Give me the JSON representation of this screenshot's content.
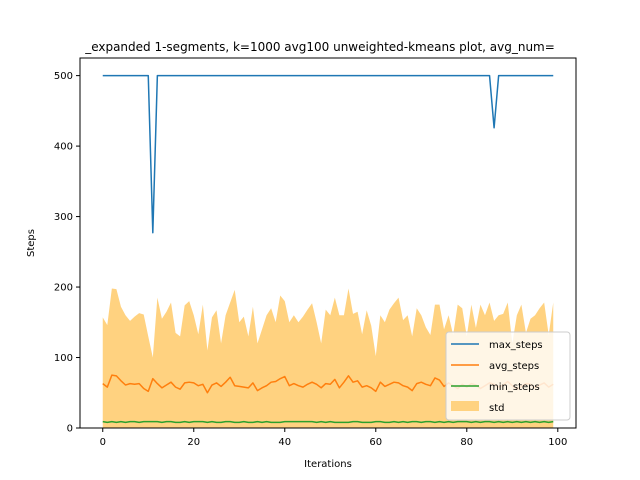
{
  "chart_data": {
    "type": "line",
    "title": "_expanded 1-segments, k=1000 avg100 unweighted-kmeans plot, avg_num=",
    "xlabel": "Iterations",
    "ylabel": "Steps",
    "xlim": [
      -5,
      104
    ],
    "ylim": [
      0,
      525
    ],
    "xticks": [
      0,
      20,
      40,
      60,
      80,
      100
    ],
    "yticks": [
      0,
      100,
      200,
      300,
      400,
      500
    ],
    "legend_position": "lower-right",
    "x": [
      0,
      1,
      2,
      3,
      4,
      5,
      6,
      7,
      8,
      9,
      10,
      11,
      12,
      13,
      14,
      15,
      16,
      17,
      18,
      19,
      20,
      21,
      22,
      23,
      24,
      25,
      26,
      27,
      28,
      29,
      30,
      31,
      32,
      33,
      34,
      35,
      36,
      37,
      38,
      39,
      40,
      41,
      42,
      43,
      44,
      45,
      46,
      47,
      48,
      49,
      50,
      51,
      52,
      53,
      54,
      55,
      56,
      57,
      58,
      59,
      60,
      61,
      62,
      63,
      64,
      65,
      66,
      67,
      68,
      69,
      70,
      71,
      72,
      73,
      74,
      75,
      76,
      77,
      78,
      79,
      80,
      81,
      82,
      83,
      84,
      85,
      86,
      87,
      88,
      89,
      90,
      91,
      92,
      93,
      94,
      95,
      96,
      97,
      98,
      99
    ],
    "series": [
      {
        "name": "max_steps",
        "color": "#1f77b4",
        "values": [
          500,
          500,
          500,
          500,
          500,
          500,
          500,
          500,
          500,
          500,
          500,
          277,
          500,
          500,
          500,
          500,
          500,
          500,
          500,
          500,
          500,
          500,
          500,
          500,
          500,
          500,
          500,
          500,
          500,
          500,
          500,
          500,
          500,
          500,
          500,
          500,
          500,
          500,
          500,
          500,
          500,
          500,
          500,
          500,
          500,
          500,
          500,
          500,
          500,
          500,
          500,
          500,
          500,
          500,
          500,
          500,
          500,
          500,
          500,
          500,
          500,
          500,
          500,
          500,
          500,
          500,
          500,
          500,
          500,
          500,
          500,
          500,
          500,
          500,
          500,
          500,
          500,
          500,
          500,
          500,
          500,
          500,
          500,
          500,
          500,
          500,
          426,
          500,
          500,
          500,
          500,
          500,
          500,
          500,
          500,
          500,
          500,
          500,
          500,
          500
        ]
      },
      {
        "name": "avg_steps",
        "color": "#ff7f0e",
        "values": [
          63,
          58,
          75,
          74,
          67,
          61,
          63,
          62,
          63,
          56,
          52,
          70,
          63,
          57,
          61,
          65,
          58,
          55,
          64,
          65,
          64,
          60,
          62,
          50,
          61,
          64,
          59,
          65,
          72,
          60,
          59,
          58,
          57,
          64,
          53,
          57,
          60,
          65,
          66,
          70,
          73,
          60,
          63,
          60,
          58,
          62,
          65,
          62,
          57,
          63,
          62,
          69,
          57,
          65,
          74,
          65,
          67,
          58,
          60,
          57,
          52,
          65,
          59,
          62,
          65,
          64,
          60,
          58,
          53,
          63,
          65,
          62,
          60,
          71,
          68,
          59,
          64,
          60,
          56,
          62,
          58,
          63,
          61,
          56,
          60,
          64,
          62,
          58,
          61,
          66,
          60,
          55,
          59,
          63,
          62,
          57,
          61,
          64,
          58,
          62
        ]
      },
      {
        "name": "min_steps",
        "color": "#2ca02c",
        "values": [
          9,
          8,
          9,
          8,
          9,
          8,
          9,
          9,
          8,
          9,
          9,
          9,
          9,
          8,
          9,
          9,
          8,
          8,
          9,
          8,
          9,
          9,
          9,
          8,
          9,
          8,
          8,
          9,
          9,
          8,
          8,
          9,
          8,
          8,
          9,
          8,
          9,
          8,
          8,
          8,
          9,
          9,
          9,
          9,
          9,
          9,
          9,
          8,
          9,
          8,
          9,
          8,
          8,
          8,
          8,
          9,
          9,
          8,
          8,
          8,
          9,
          9,
          8,
          8,
          9,
          8,
          9,
          8,
          9,
          9,
          8,
          9,
          9,
          8,
          9,
          8,
          9,
          8,
          9,
          9,
          9,
          8,
          9,
          8,
          9,
          9,
          8,
          9,
          8,
          9,
          8,
          9,
          8,
          9,
          8,
          9,
          8,
          9,
          8,
          9
        ]
      }
    ],
    "band": {
      "name": "std",
      "color": "#ffd280",
      "upper": [
        157,
        146,
        198,
        197,
        172,
        160,
        152,
        158,
        163,
        161,
        130,
        100,
        185,
        155,
        165,
        178,
        135,
        130,
        174,
        180,
        160,
        133,
        175,
        110,
        157,
        167,
        120,
        160,
        178,
        196,
        150,
        158,
        130,
        172,
        120,
        140,
        160,
        170,
        150,
        188,
        180,
        150,
        160,
        150,
        158,
        168,
        177,
        150,
        120,
        168,
        160,
        185,
        160,
        160,
        198,
        162,
        165,
        133,
        167,
        145,
        102,
        160,
        150,
        168,
        177,
        185,
        153,
        160,
        130,
        170,
        160,
        143,
        132,
        175,
        175,
        140,
        160,
        132,
        175,
        170,
        130,
        175,
        142,
        175,
        160,
        178,
        152,
        160,
        162,
        178,
        120,
        160,
        175,
        135,
        155,
        160,
        170,
        178,
        132,
        178
      ],
      "lower": [
        0,
        0,
        0,
        0,
        0,
        0,
        0,
        0,
        0,
        0,
        0,
        0,
        0,
        0,
        0,
        0,
        0,
        0,
        0,
        0,
        0,
        0,
        0,
        0,
        0,
        0,
        0,
        0,
        0,
        0,
        0,
        0,
        0,
        0,
        0,
        0,
        0,
        0,
        0,
        0,
        0,
        0,
        0,
        0,
        0,
        0,
        0,
        0,
        0,
        0,
        0,
        0,
        0,
        0,
        0,
        0,
        0,
        0,
        0,
        0,
        0,
        0,
        0,
        0,
        0,
        0,
        0,
        0,
        0,
        0,
        0,
        0,
        0,
        0,
        0,
        0,
        0,
        0,
        0,
        0,
        0,
        0,
        0,
        0,
        0,
        0,
        0,
        0,
        0,
        0,
        0,
        0,
        0,
        0,
        0,
        0,
        0,
        0,
        0,
        0
      ]
    }
  }
}
